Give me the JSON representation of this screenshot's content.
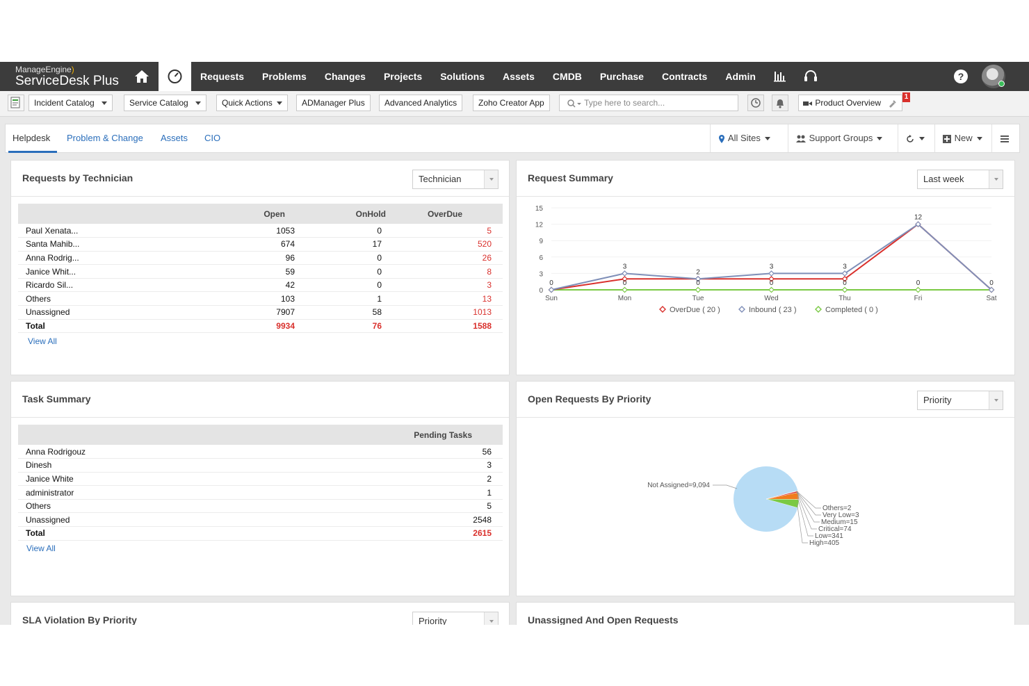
{
  "brand": {
    "vendor": "ManageEngine",
    "product": "ServiceDesk Plus"
  },
  "nav": {
    "items": [
      "Requests",
      "Problems",
      "Changes",
      "Projects",
      "Solutions",
      "Assets",
      "CMDB",
      "Purchase",
      "Contracts",
      "Admin"
    ]
  },
  "toolbar": {
    "incident_catalog": "Incident Catalog",
    "service_catalog": "Service Catalog",
    "quick_actions": "Quick Actions",
    "admanager": "ADManager Plus",
    "advanced_analytics": "Advanced Analytics",
    "zoho_creator": "Zoho Creator App",
    "search_placeholder": "Type here to search...",
    "product_overview": "Product Overview",
    "badge_count": "1"
  },
  "tabs": {
    "helpdesk": "Helpdesk",
    "problem_change": "Problem & Change",
    "assets": "Assets",
    "cio": "CIO",
    "all_sites": "All Sites",
    "support_groups": "Support Groups",
    "new": "New"
  },
  "requests_by_tech": {
    "title": "Requests by Technician",
    "filter": "Technician",
    "headers": {
      "open": "Open",
      "onhold": "OnHold",
      "overdue": "OverDue"
    },
    "rows": [
      {
        "name": "Paul Xenata...",
        "open": "1053",
        "onhold": "0",
        "overdue": "5"
      },
      {
        "name": "Santa Mahib...",
        "open": "674",
        "onhold": "17",
        "overdue": "520"
      },
      {
        "name": "Anna Rodrig...",
        "open": "96",
        "onhold": "0",
        "overdue": "26"
      },
      {
        "name": "Janice Whit...",
        "open": "59",
        "onhold": "0",
        "overdue": "8"
      },
      {
        "name": "Ricardo Sil...",
        "open": "42",
        "onhold": "0",
        "overdue": "3"
      },
      {
        "name": "Others",
        "open": "103",
        "onhold": "1",
        "overdue": "13"
      },
      {
        "name": "Unassigned",
        "open": "7907",
        "onhold": "58",
        "overdue": "1013"
      }
    ],
    "total": {
      "name": "Total",
      "open": "9934",
      "onhold": "76",
      "overdue": "1588"
    },
    "view_all": "View All"
  },
  "request_summary": {
    "title": "Request Summary",
    "filter": "Last week"
  },
  "chart_data": [
    {
      "type": "line",
      "x": [
        "Sun",
        "Mon",
        "Tue",
        "Wed",
        "Thu",
        "Fri",
        "Sat"
      ],
      "yticks": [
        0,
        3,
        6,
        9,
        12,
        15
      ],
      "ylim": [
        0,
        15
      ],
      "series": [
        {
          "name": "OverDue ( 20 )",
          "color": "#d9302c",
          "values": [
            0,
            2,
            2,
            2,
            2,
            12,
            0
          ]
        },
        {
          "name": "Inbound ( 23 )",
          "color": "#7f8fb8",
          "values": [
            0,
            3,
            2,
            3,
            3,
            12,
            0
          ]
        },
        {
          "name": "Completed ( 0 )",
          "color": "#7ac943",
          "values": [
            0,
            0,
            0,
            0,
            0,
            0,
            0
          ]
        }
      ],
      "point_labels": {
        "top": [
          "0",
          "3",
          "2",
          "3",
          "3",
          "12",
          "0"
        ],
        "bottom": [
          "",
          "0",
          "0",
          "0",
          "0",
          "0",
          ""
        ]
      }
    },
    {
      "type": "pie",
      "labels": [
        "Not Assigned=9,094",
        "Others=2",
        "Very Low=3",
        "Medium=15",
        "Critical=74",
        "Low=341",
        "High=405"
      ],
      "values": [
        9094,
        2,
        3,
        15,
        74,
        341,
        405
      ],
      "colors": [
        "#b7dcf5",
        "#666666",
        "#888888",
        "#aaaaaa",
        "#d9302c",
        "#f07c1e",
        "#7ac943"
      ]
    }
  ],
  "task_summary": {
    "title": "Task Summary",
    "header": "Pending Tasks",
    "rows": [
      {
        "name": "Anna Rodrigouz",
        "count": "56"
      },
      {
        "name": "Dinesh",
        "count": "3"
      },
      {
        "name": "Janice White",
        "count": "2"
      },
      {
        "name": "administrator",
        "count": "1"
      },
      {
        "name": "Others",
        "count": "5"
      },
      {
        "name": "Unassigned",
        "count": "2548"
      }
    ],
    "total": {
      "name": "Total",
      "count": "2615"
    },
    "view_all": "View All"
  },
  "open_by_priority": {
    "title": "Open Requests By Priority",
    "filter": "Priority"
  },
  "sla_violation": {
    "title": "SLA Violation By Priority",
    "filter": "Priority"
  },
  "unassigned_open": {
    "title": "Unassigned And Open Requests"
  }
}
